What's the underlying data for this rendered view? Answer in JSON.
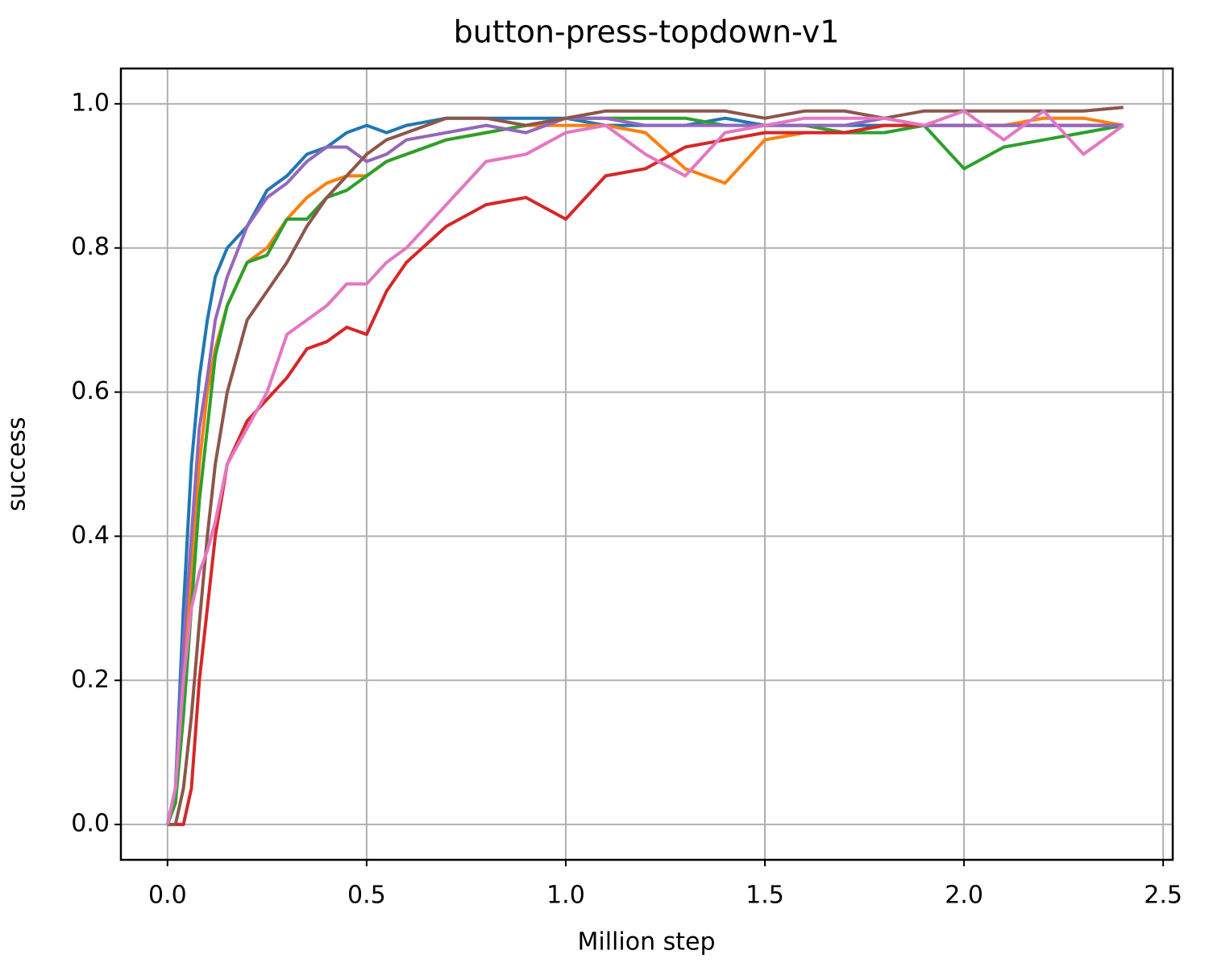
{
  "chart_data": {
    "type": "line",
    "title": "button-press-topdown-v1",
    "xlabel": "Million step",
    "ylabel": "success",
    "x": [
      0,
      0.02,
      0.04,
      0.06,
      0.08,
      0.1,
      0.12,
      0.15,
      0.2,
      0.25,
      0.3,
      0.35,
      0.4,
      0.45,
      0.5,
      0.55,
      0.6,
      0.7,
      0.8,
      0.9,
      1.0,
      1.1,
      1.2,
      1.3,
      1.4,
      1.5,
      1.6,
      1.7,
      1.8,
      1.9,
      2.0,
      2.1,
      2.2,
      2.3,
      2.4
    ],
    "series": [
      {
        "color": "#1f77b4",
        "values": [
          0,
          0.05,
          0.3,
          0.5,
          0.62,
          0.7,
          0.76,
          0.8,
          0.83,
          0.88,
          0.9,
          0.93,
          0.94,
          0.96,
          0.97,
          0.96,
          0.97,
          0.98,
          0.98,
          0.98,
          0.98,
          0.97,
          0.97,
          0.97,
          0.98,
          0.97,
          0.97,
          0.97,
          0.97,
          0.97,
          0.97,
          0.97,
          0.97,
          0.97,
          0.97
        ]
      },
      {
        "color": "#ff7f0e",
        "values": [
          0,
          0.03,
          0.2,
          0.35,
          0.5,
          0.6,
          0.66,
          0.72,
          0.78,
          0.8,
          0.84,
          0.87,
          0.89,
          0.9,
          0.9,
          0.92,
          0.93,
          0.95,
          0.96,
          0.97,
          0.97,
          0.97,
          0.96,
          0.91,
          0.89,
          0.95,
          0.96,
          0.96,
          0.97,
          0.97,
          0.97,
          0.97,
          0.98,
          0.98,
          0.97
        ]
      },
      {
        "color": "#2ca02c",
        "values": [
          0,
          0.03,
          0.15,
          0.3,
          0.45,
          0.55,
          0.65,
          0.72,
          0.78,
          0.79,
          0.84,
          0.84,
          0.87,
          0.88,
          0.9,
          0.92,
          0.93,
          0.95,
          0.96,
          0.97,
          0.98,
          0.98,
          0.98,
          0.98,
          0.97,
          0.97,
          0.97,
          0.96,
          0.96,
          0.97,
          0.91,
          0.94,
          0.95,
          0.96,
          0.97
        ]
      },
      {
        "color": "#d62728",
        "values": [
          0,
          0,
          0,
          0.05,
          0.2,
          0.3,
          0.4,
          0.5,
          0.56,
          0.59,
          0.62,
          0.66,
          0.67,
          0.69,
          0.68,
          0.74,
          0.78,
          0.83,
          0.86,
          0.87,
          0.84,
          0.9,
          0.91,
          0.94,
          0.95,
          0.96,
          0.96,
          0.96,
          0.97,
          0.97,
          0.97,
          0.97,
          0.97,
          0.97,
          0.97
        ]
      },
      {
        "color": "#9467bd",
        "values": [
          0,
          0.05,
          0.25,
          0.4,
          0.55,
          0.62,
          0.7,
          0.76,
          0.83,
          0.87,
          0.89,
          0.92,
          0.94,
          0.94,
          0.92,
          0.93,
          0.95,
          0.96,
          0.97,
          0.96,
          0.98,
          0.98,
          0.97,
          0.97,
          0.97,
          0.97,
          0.97,
          0.97,
          0.98,
          0.97,
          0.97,
          0.97,
          0.97,
          0.97,
          0.97
        ]
      },
      {
        "color": "#8c564b",
        "values": [
          0,
          0,
          0.05,
          0.15,
          0.28,
          0.4,
          0.5,
          0.6,
          0.7,
          0.74,
          0.78,
          0.83,
          0.87,
          0.9,
          0.93,
          0.95,
          0.96,
          0.98,
          0.98,
          0.97,
          0.98,
          0.99,
          0.99,
          0.99,
          0.99,
          0.98,
          0.99,
          0.99,
          0.98,
          0.99,
          0.99,
          0.99,
          0.99,
          0.99,
          0.995
        ]
      },
      {
        "color": "#e377c2",
        "values": [
          0,
          0.05,
          0.2,
          0.3,
          0.35,
          0.38,
          0.42,
          0.5,
          0.55,
          0.6,
          0.68,
          0.7,
          0.72,
          0.75,
          0.75,
          0.78,
          0.8,
          0.86,
          0.92,
          0.93,
          0.96,
          0.97,
          0.93,
          0.9,
          0.96,
          0.97,
          0.98,
          0.98,
          0.98,
          0.97,
          0.99,
          0.95,
          0.99,
          0.93,
          0.97
        ]
      }
    ],
    "xlim": [
      -0.117,
      2.524
    ],
    "ylim": [
      -0.049,
      1.049
    ],
    "xticks": [
      {
        "value": 0,
        "label": "0.0"
      },
      {
        "value": 0.5,
        "label": "0.5"
      },
      {
        "value": 1,
        "label": "1.0"
      },
      {
        "value": 1.5,
        "label": "1.5"
      },
      {
        "value": 2,
        "label": "2.0"
      },
      {
        "value": 2.5,
        "label": "2.5"
      }
    ],
    "yticks": [
      {
        "value": 0,
        "label": "0.0"
      },
      {
        "value": 0.2,
        "label": "0.2"
      },
      {
        "value": 0.4,
        "label": "0.4"
      },
      {
        "value": 0.6,
        "label": "0.6"
      },
      {
        "value": 0.8,
        "label": "0.8"
      },
      {
        "value": 1,
        "label": "1.0"
      }
    ],
    "grid": true
  }
}
